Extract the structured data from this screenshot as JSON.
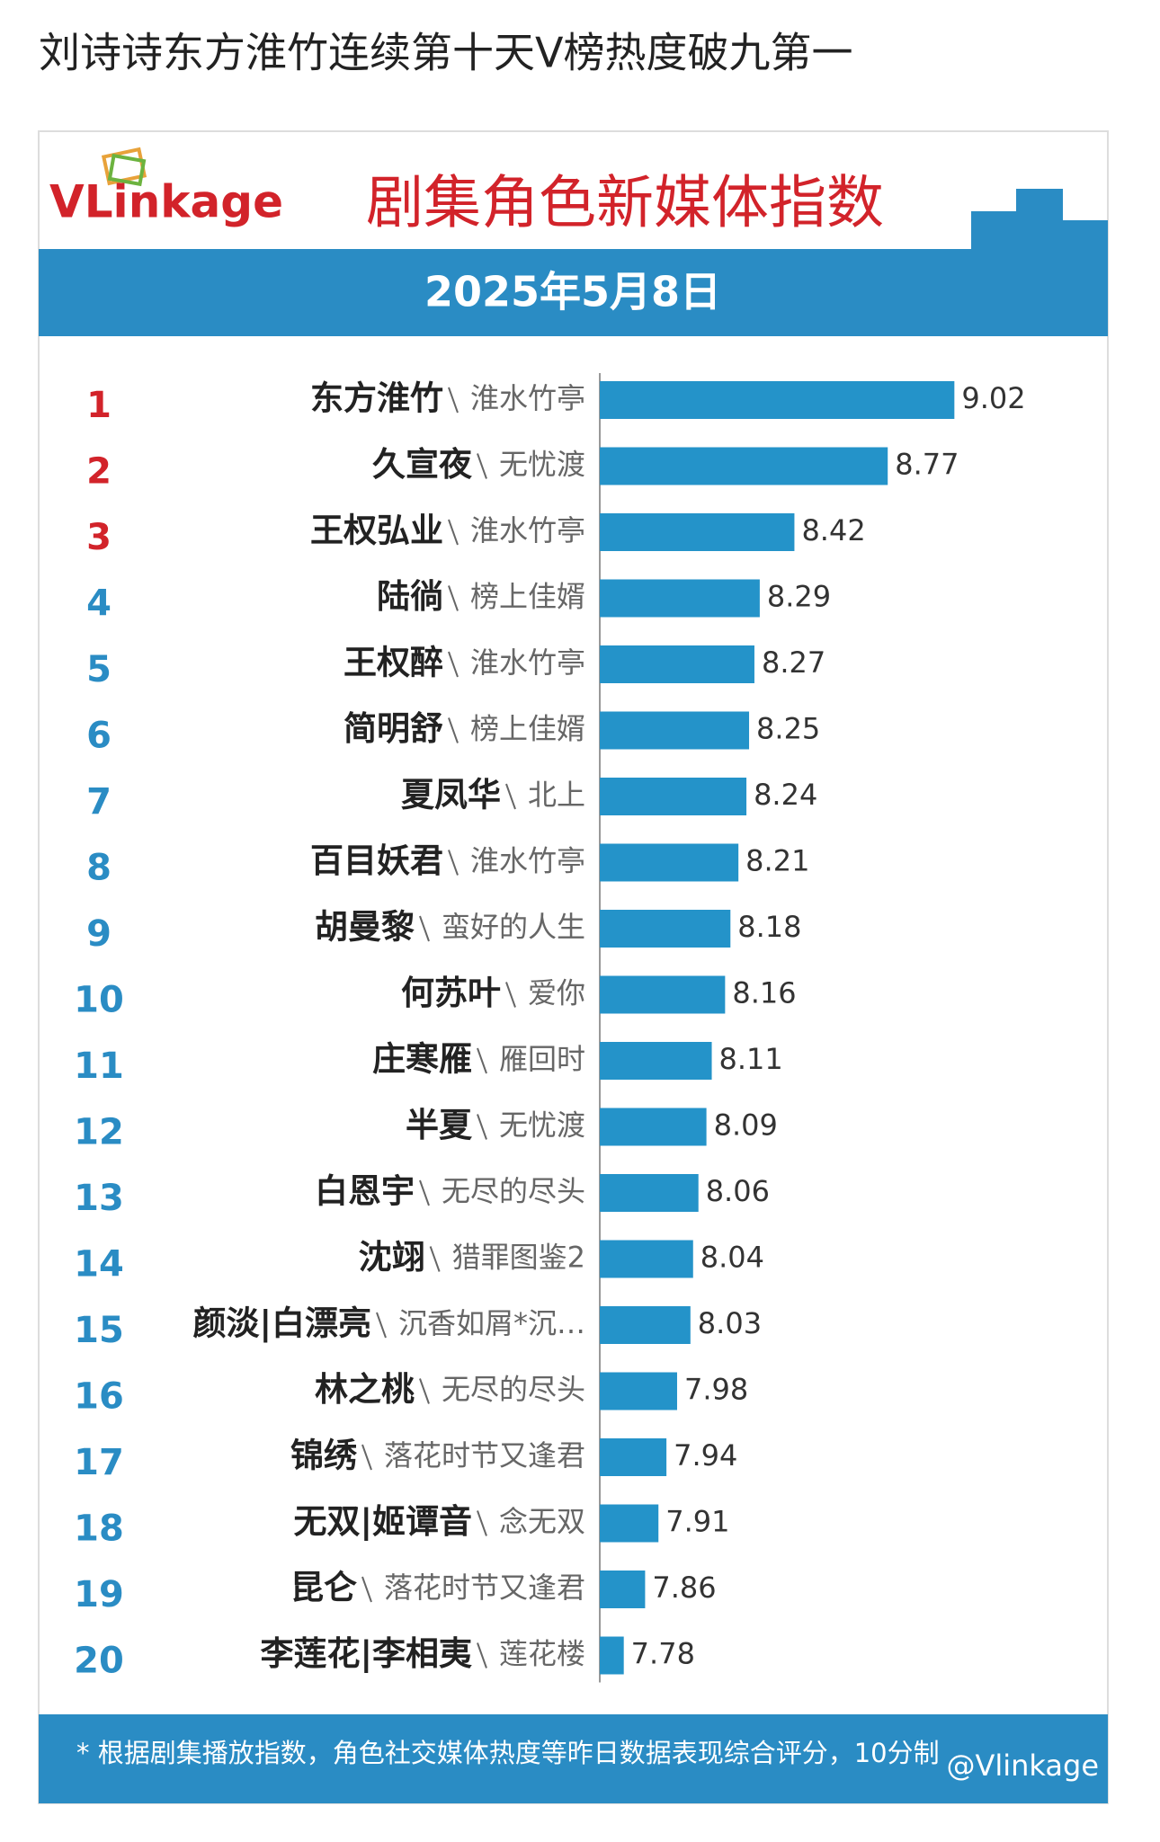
{
  "post_title": "刘诗诗东方淮竹连续第十天V榜热度破九第一",
  "chart_data": {
    "type": "bar",
    "orientation": "horizontal",
    "logo": "VLinkage",
    "title": "剧集角色新媒体指数",
    "subtitle": "2025年5月8日",
    "ranks": [
      1,
      2,
      3,
      4,
      5,
      6,
      7,
      8,
      9,
      10,
      11,
      12,
      13,
      14,
      15,
      16,
      17,
      18,
      19,
      20
    ],
    "rank_colors": [
      "#d2232a",
      "#d2232a",
      "#d2232a",
      "#2a8cc4",
      "#2a8cc4",
      "#2a8cc4",
      "#2a8cc4",
      "#2a8cc4",
      "#2a8cc4",
      "#2a8cc4",
      "#2a8cc4",
      "#2a8cc4",
      "#2a8cc4",
      "#2a8cc4",
      "#2a8cc4",
      "#2a8cc4",
      "#2a8cc4",
      "#2a8cc4",
      "#2a8cc4",
      "#2a8cc4"
    ],
    "categories": [
      "东方淮竹",
      "久宣夜",
      "王权弘业",
      "陆徜",
      "王权醉",
      "简明舒",
      "夏凤华",
      "百目妖君",
      "胡曼黎",
      "何苏叶",
      "庄寒雁",
      "半夏",
      "白恩宇",
      "沈翊",
      "颜淡|白漂亮",
      "林之桃",
      "锦绣",
      "无双|姬谭音",
      "昆仑",
      "李莲花|李相夷"
    ],
    "dramas": [
      "淮水竹亭",
      "无忧渡",
      "淮水竹亭",
      "榜上佳婿",
      "淮水竹亭",
      "榜上佳婿",
      "北上",
      "淮水竹亭",
      "蛮好的人生",
      "爱你",
      "雁回时",
      "无忧渡",
      "无尽的尽头",
      "猎罪图鉴2",
      "沉香如屑*沉…",
      "无尽的尽头",
      "落花时节又逢君",
      "念无双",
      "落花时节又逢君",
      "莲花楼"
    ],
    "values": [
      9.02,
      8.77,
      8.42,
      8.29,
      8.27,
      8.25,
      8.24,
      8.21,
      8.18,
      8.16,
      8.11,
      8.09,
      8.06,
      8.04,
      8.03,
      7.98,
      7.94,
      7.91,
      7.86,
      7.78
    ],
    "color": "#2493c9",
    "xlim": [
      7.69,
      9.4
    ],
    "footnote": "* 根据剧集播放指数，角色社交媒体热度等昨日数据表现综合评分，10分制",
    "watermark": "@Vlinkage"
  }
}
